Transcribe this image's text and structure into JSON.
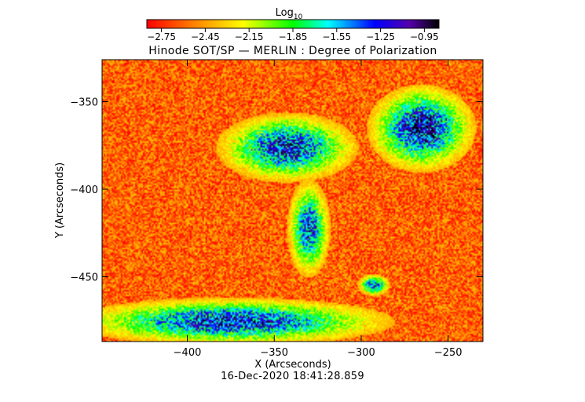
{
  "chart_data": {
    "type": "heatmap",
    "title": "Hinode SOT/SP — MERLIN : Degree of Polarization",
    "xlabel": "X (Arcseconds)",
    "ylabel": "Y (Arcseconds)",
    "xlim": [
      -449,
      -230
    ],
    "ylim": [
      -487,
      -326
    ],
    "x_ticks": [
      -400,
      -350,
      -300,
      -250
    ],
    "y_ticks": [
      -350,
      -400,
      -450
    ],
    "x_tick_labels": [
      "−400",
      "−350",
      "−300",
      "−250"
    ],
    "y_tick_labels": [
      "−350",
      "−400",
      "−450"
    ],
    "colorbar": {
      "label_base": "Log",
      "label_sub": "10",
      "range": [
        -2.85,
        -0.85
      ],
      "ticks": [
        -2.75,
        -2.45,
        -2.15,
        -1.85,
        -1.55,
        -1.25,
        -0.95
      ],
      "tick_labels": [
        "−2.75",
        "−2.45",
        "−2.15",
        "−1.85",
        "−1.55",
        "−1.25",
        "−0.95"
      ],
      "colormap": "rainbow (red → yellow → green → blue → black)"
    },
    "background_log_value": -2.6,
    "strong_polarization_regions": [
      {
        "x_range": [
          -375,
          -310
        ],
        "y_range": [
          -392,
          -360
        ],
        "peak_log": -1.2
      },
      {
        "x_range": [
          -290,
          -240
        ],
        "y_range": [
          -385,
          -345
        ],
        "peak_log": -1.1
      },
      {
        "x_range": [
          -449,
          -300
        ],
        "y_range": [
          -487,
          -465
        ],
        "peak_log": -1.2
      },
      {
        "x_range": [
          -340,
          -320
        ],
        "y_range": [
          -445,
          -400
        ],
        "peak_log": -1.3
      },
      {
        "x_range": [
          -300,
          -285
        ],
        "y_range": [
          -460,
          -450
        ],
        "peak_log": -1.3
      }
    ]
  },
  "timestamp": "16-Dec-2020 18:41:28.859"
}
